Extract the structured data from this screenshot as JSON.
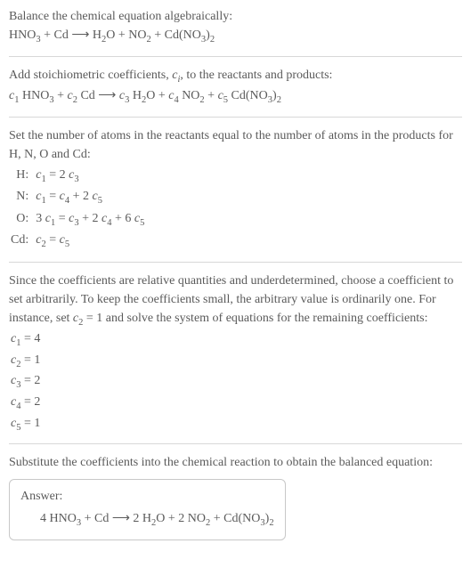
{
  "colors": {
    "text": "#5a5a5a",
    "rule": "#d8d8d8",
    "box_border": "#c8c8c8",
    "background": "#ffffff"
  },
  "typography": {
    "body_fontsize_pt": 11,
    "sub_scale": 0.75,
    "font_family": "Georgia, 'Times New Roman', serif"
  },
  "intro": {
    "line1": "Balance the chemical equation algebraically:",
    "eq_parts": {
      "a": "HNO",
      "a_sub": "3",
      "plus1": " + Cd ",
      "arrow": "⟶",
      "b": " H",
      "b_sub": "2",
      "b2": "O + NO",
      "b2_sub": "2",
      "c": " + Cd(NO",
      "c_sub": "3",
      "c2": ")",
      "c2_sub": "2"
    }
  },
  "stoich": {
    "text_a": "Add stoichiometric coefficients, ",
    "ci": "c",
    "ci_sub": "i",
    "text_b": ", to the reactants and products:",
    "eq": {
      "c1": "c",
      "c1_sub": "1",
      "sp1": " HNO",
      "sp1_sub": "3",
      "plus1": " + ",
      "c2": "c",
      "c2_sub": "2",
      "sp2": " Cd ",
      "arrow": "⟶",
      "c3": " c",
      "c3_sub": "3",
      "sp3": " H",
      "sp3_sub": "2",
      "sp3b": "O + ",
      "c4": "c",
      "c4_sub": "4",
      "sp4": " NO",
      "sp4_sub": "2",
      "plus2": " + ",
      "c5": "c",
      "c5_sub": "5",
      "sp5": " Cd(NO",
      "sp5_sub": "3",
      "sp5b": ")",
      "sp5b_sub": "2"
    }
  },
  "atoms": {
    "intro": "Set the number of atoms in the reactants equal to the number of atoms in the products for H, N, O and Cd:",
    "rows": [
      {
        "el": "H:",
        "lhs_c": "c",
        "lhs_sub": "1",
        "eq": " = 2 ",
        "rhs_c": "c",
        "rhs_sub": "3",
        "tail": ""
      },
      {
        "el": "N:",
        "lhs_c": "c",
        "lhs_sub": "1",
        "eq": " = ",
        "rhs_c": "c",
        "rhs_sub": "4",
        "tail_a": " + 2 ",
        "tail_c": "c",
        "tail_sub": "5"
      },
      {
        "el": "O:",
        "lhs_pre": "3 ",
        "lhs_c": "c",
        "lhs_sub": "1",
        "eq": " = ",
        "rhs_c": "c",
        "rhs_sub": "3",
        "tail_a": " + 2 ",
        "tail_c": "c",
        "tail_sub": "4",
        "tail_b": " + 6 ",
        "tail_c2": "c",
        "tail_sub2": "5"
      },
      {
        "el": "Cd:",
        "lhs_c": "c",
        "lhs_sub": "2",
        "eq": " = ",
        "rhs_c": "c",
        "rhs_sub": "5",
        "tail": ""
      }
    ]
  },
  "choose": {
    "text_a": "Since the coefficients are relative quantities and underdetermined, choose a coefficient to set arbitrarily. To keep the coefficients small, the arbitrary value is ordinarily one. For instance, set ",
    "cv": "c",
    "cv_sub": "2",
    "text_b": " = 1 and solve the system of equations for the remaining coefficients:",
    "sol": [
      {
        "c": "c",
        "sub": "1",
        "val": " = 4"
      },
      {
        "c": "c",
        "sub": "2",
        "val": " = 1"
      },
      {
        "c": "c",
        "sub": "3",
        "val": " = 2"
      },
      {
        "c": "c",
        "sub": "4",
        "val": " = 2"
      },
      {
        "c": "c",
        "sub": "5",
        "val": " = 1"
      }
    ]
  },
  "subst": {
    "text": "Substitute the coefficients into the chemical reaction to obtain the balanced equation:"
  },
  "answer": {
    "label": "Answer:",
    "eq": {
      "a": "4 HNO",
      "a_sub": "3",
      "plus1": " + Cd ",
      "arrow": "⟶",
      "b": " 2 H",
      "b_sub": "2",
      "b2": "O + 2 NO",
      "b2_sub": "2",
      "c": " + Cd(NO",
      "c_sub": "3",
      "c2": ")",
      "c2_sub": "2"
    }
  }
}
